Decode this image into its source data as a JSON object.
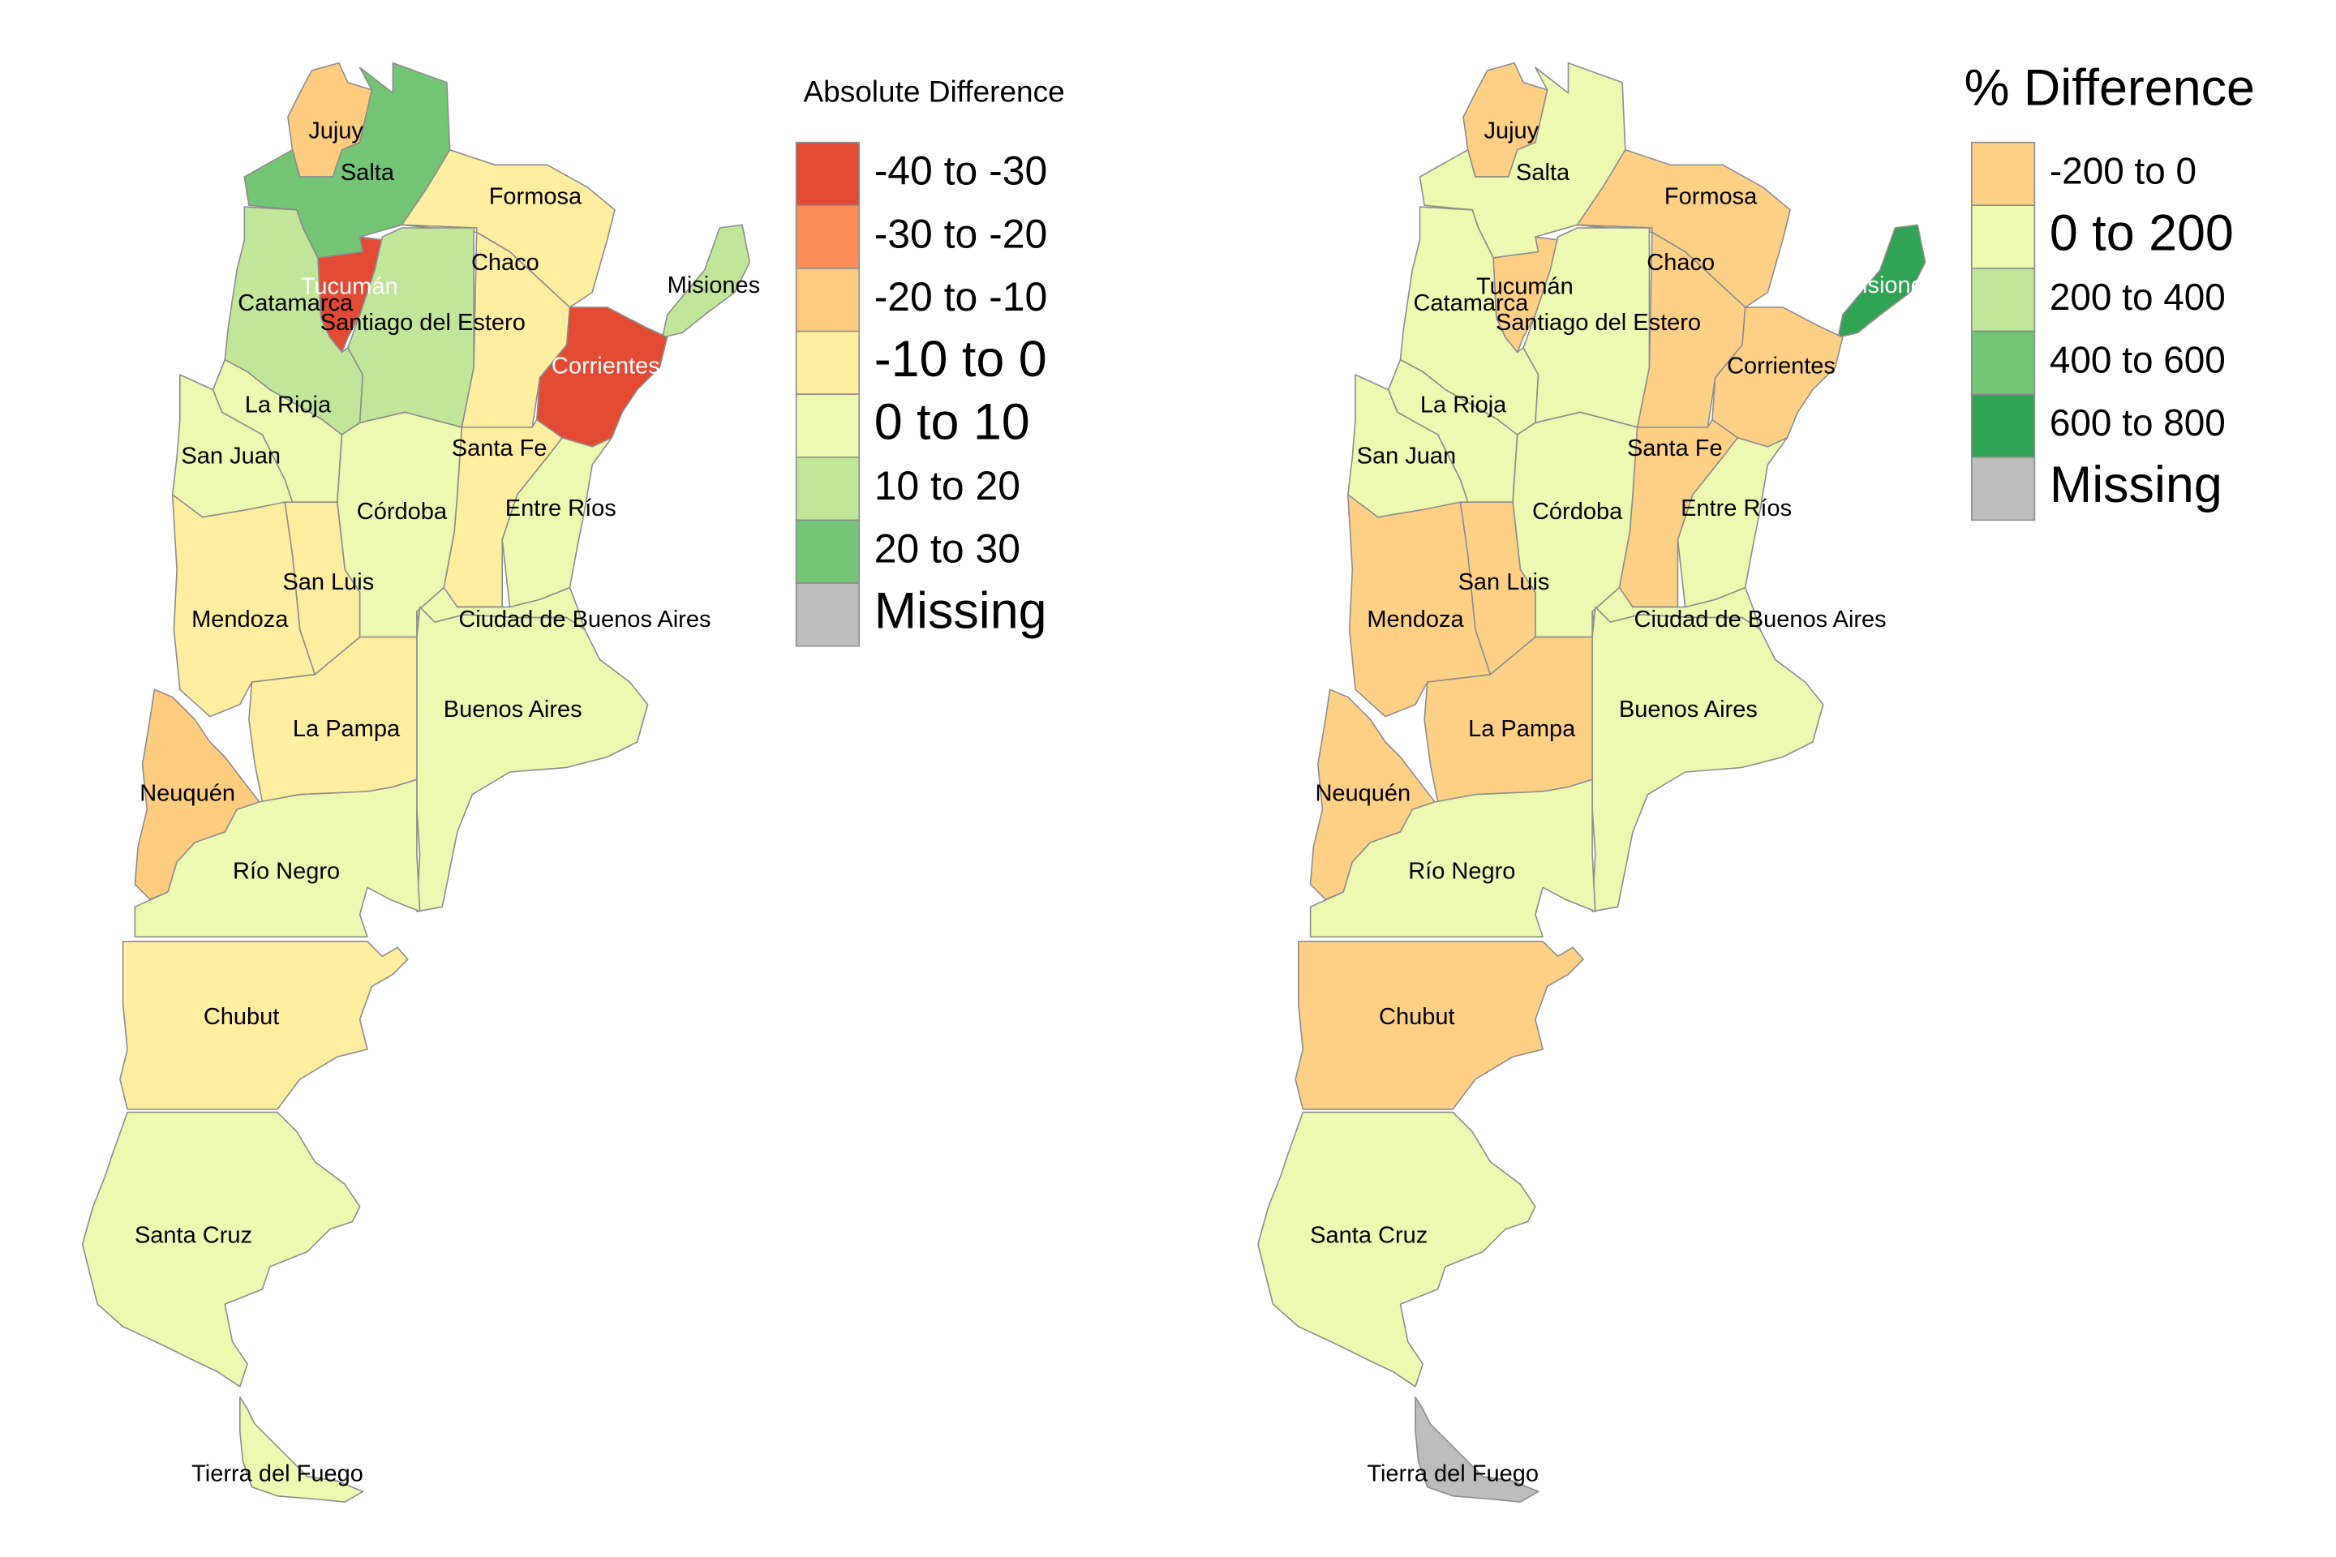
{
  "colors": {
    "n40_30": "#e34a33",
    "n30_20": "#fc8d59",
    "n20_10": "#fdcc7f",
    "n10_0": "#ffeda0",
    "p0_10": "#edf8b1",
    "p10_20": "#c2e699",
    "p20_30": "#74c476",
    "pct_neg200_0": "#fdd085",
    "pct_0_200": "#edf8b1",
    "pct_200_400": "#c2e699",
    "pct_400_600": "#74c476",
    "pct_600_800": "#31a354",
    "missing": "#bdbdbd",
    "border": "#8c8c8c",
    "label_dark": "#000000",
    "label_light": "#ffffff"
  },
  "maps": [
    {
      "id": "absolute",
      "legend_title": "Absolute Difference",
      "legend": [
        {
          "label": "-40 to -30",
          "color_key": "n40_30"
        },
        {
          "label": "-30 to -20",
          "color_key": "n30_20"
        },
        {
          "label": "-20 to -10",
          "color_key": "n20_10"
        },
        {
          "label": "-10 to 0",
          "color_key": "n10_0"
        },
        {
          "label": "0 to 10",
          "color_key": "p0_10"
        },
        {
          "label": "10 to 20",
          "color_key": "p10_20"
        },
        {
          "label": "20 to 30",
          "color_key": "p20_30"
        },
        {
          "label": "Missing",
          "color_key": "missing"
        }
      ],
      "provinces": {
        "jujuy": {
          "label": "Jujuy",
          "class": "n20_10"
        },
        "salta": {
          "label": "Salta",
          "class": "p20_30"
        },
        "formosa": {
          "label": "Formosa",
          "class": "n10_0"
        },
        "chaco": {
          "label": "Chaco",
          "class": "n10_0"
        },
        "misiones": {
          "label": "Misiones",
          "class": "p10_20"
        },
        "tucuman": {
          "label": "Tucumán",
          "class": "n40_30",
          "light": true
        },
        "catamarca": {
          "label": "Catamarca",
          "class": "p10_20"
        },
        "santiago": {
          "label": "Santiago del Estero",
          "class": "p10_20"
        },
        "corrientes": {
          "label": "Corrientes",
          "class": "n40_30",
          "light": true
        },
        "larioja": {
          "label": "La Rioja",
          "class": "p0_10"
        },
        "sanjuan": {
          "label": "San Juan",
          "class": "p0_10"
        },
        "santafe": {
          "label": "Santa Fe",
          "class": "n10_0"
        },
        "cordoba": {
          "label": "Córdoba",
          "class": "p0_10"
        },
        "entrerios": {
          "label": "Entre Ríos",
          "class": "p0_10"
        },
        "sanluis": {
          "label": "San Luis",
          "class": "n10_0"
        },
        "mendoza": {
          "label": "Mendoza",
          "class": "n10_0"
        },
        "caba": {
          "label": "Ciudad de Buenos Aires",
          "class": "p0_10"
        },
        "buenosaires": {
          "label": "Buenos Aires",
          "class": "p0_10"
        },
        "lapampa": {
          "label": "La Pampa",
          "class": "n10_0"
        },
        "neuquen": {
          "label": "Neuquén",
          "class": "n20_10"
        },
        "rionegro": {
          "label": "Río Negro",
          "class": "p0_10"
        },
        "chubut": {
          "label": "Chubut",
          "class": "n10_0"
        },
        "santacruz": {
          "label": "Santa Cruz",
          "class": "p0_10"
        },
        "tierradelfuego": {
          "label": "Tierra del Fuego",
          "class": "p0_10"
        }
      }
    },
    {
      "id": "percent",
      "legend_title": "% Difference",
      "legend": [
        {
          "label": "-200 to 0",
          "color_key": "pct_neg200_0"
        },
        {
          "label": "0 to 200",
          "color_key": "pct_0_200"
        },
        {
          "label": "200 to 400",
          "color_key": "pct_200_400"
        },
        {
          "label": "400 to 600",
          "color_key": "pct_400_600"
        },
        {
          "label": "600 to 800",
          "color_key": "pct_600_800"
        },
        {
          "label": "Missing",
          "color_key": "missing"
        }
      ],
      "provinces": {
        "jujuy": {
          "label": "Jujuy",
          "class": "pct_neg200_0"
        },
        "salta": {
          "label": "Salta",
          "class": "pct_0_200"
        },
        "formosa": {
          "label": "Formosa",
          "class": "pct_neg200_0"
        },
        "chaco": {
          "label": "Chaco",
          "class": "pct_neg200_0"
        },
        "misiones": {
          "label": "Misiones",
          "class": "pct_600_800",
          "light": true
        },
        "tucuman": {
          "label": "Tucumán",
          "class": "pct_neg200_0"
        },
        "catamarca": {
          "label": "Catamarca",
          "class": "pct_0_200"
        },
        "santiago": {
          "label": "Santiago del Estero",
          "class": "pct_0_200"
        },
        "corrientes": {
          "label": "Corrientes",
          "class": "pct_neg200_0"
        },
        "larioja": {
          "label": "La Rioja",
          "class": "pct_0_200"
        },
        "sanjuan": {
          "label": "San Juan",
          "class": "pct_0_200"
        },
        "santafe": {
          "label": "Santa Fe",
          "class": "pct_neg200_0"
        },
        "cordoba": {
          "label": "Córdoba",
          "class": "pct_0_200"
        },
        "entrerios": {
          "label": "Entre Ríos",
          "class": "pct_0_200"
        },
        "sanluis": {
          "label": "San Luis",
          "class": "pct_neg200_0"
        },
        "mendoza": {
          "label": "Mendoza",
          "class": "pct_neg200_0"
        },
        "caba": {
          "label": "Ciudad de Buenos Aires",
          "class": "pct_0_200"
        },
        "buenosaires": {
          "label": "Buenos Aires",
          "class": "pct_0_200"
        },
        "lapampa": {
          "label": "La Pampa",
          "class": "pct_neg200_0"
        },
        "neuquen": {
          "label": "Neuquén",
          "class": "pct_neg200_0"
        },
        "rionegro": {
          "label": "Río Negro",
          "class": "pct_0_200"
        },
        "chubut": {
          "label": "Chubut",
          "class": "pct_neg200_0"
        },
        "santacruz": {
          "label": "Santa Cruz",
          "class": "pct_0_200"
        },
        "tierradelfuego": {
          "label": "Tierra del Fuego",
          "class": "missing"
        }
      }
    }
  ]
}
